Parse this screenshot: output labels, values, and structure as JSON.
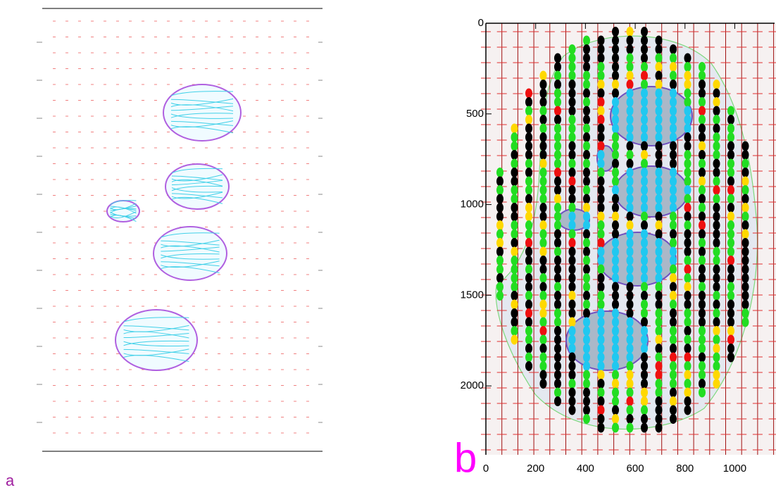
{
  "panels": [
    {
      "label": "a"
    },
    {
      "label": "b",
      "xlim": [
        0,
        1160
      ],
      "ylim": [
        0,
        2380
      ],
      "xticks": [
        0,
        200,
        400,
        600,
        800,
        1000
      ],
      "yticks": [
        0,
        500,
        1000,
        1500,
        2000
      ]
    }
  ]
}
